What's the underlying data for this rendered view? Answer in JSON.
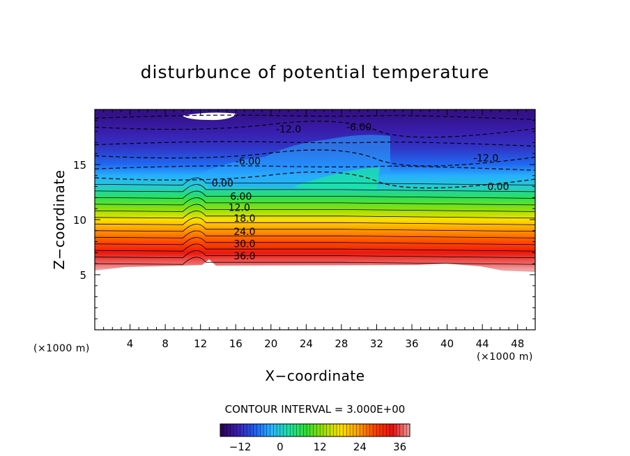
{
  "chart_data": {
    "type": "heatmap",
    "title": "disturbunce of potential temperature",
    "xlabel": "X−coordinate",
    "ylabel": "Z−coordinate",
    "x_unit_label": "(×1000 m)",
    "y_unit_label": "(×1000 m)",
    "xlim": [
      0,
      50
    ],
    "ylim": [
      0,
      20
    ],
    "x_ticks": [
      4,
      8,
      12,
      16,
      20,
      24,
      28,
      32,
      36,
      40,
      44,
      48
    ],
    "y_ticks": [
      5,
      10,
      15
    ],
    "contour_interval_text": "CONTOUR INTERVAL = 3.000E+00",
    "contour_interval": 3,
    "colorbar": {
      "min": -18,
      "max": 39,
      "ticks": [
        -12,
        0,
        12,
        24,
        36
      ]
    },
    "contour_labels": [
      {
        "text": "0.00",
        "x": 14.5,
        "z": 13.0
      },
      {
        "text": "6.00",
        "x": 16.6,
        "z": 11.8
      },
      {
        "text": "12.0",
        "x": 16.4,
        "z": 10.8
      },
      {
        "text": "18.0",
        "x": 17.0,
        "z": 9.8
      },
      {
        "text": "24.0",
        "x": 17.0,
        "z": 8.6
      },
      {
        "text": "30.0",
        "x": 17.0,
        "z": 7.5
      },
      {
        "text": "36.0",
        "x": 17.0,
        "z": 6.4
      },
      {
        "text": "-6.00",
        "x": 17.4,
        "z": 15.0
      },
      {
        "text": "-12.0",
        "x": 22.0,
        "z": 17.9
      },
      {
        "text": "-6.00",
        "x": 30.0,
        "z": 18.1
      },
      {
        "text": "-12.0",
        "x": 44.4,
        "z": 15.3
      },
      {
        "text": "0.00",
        "x": 45.8,
        "z": 12.7
      }
    ],
    "field_bands": [
      {
        "z": 19.5,
        "value": -15
      },
      {
        "z": 18.0,
        "value": -13
      },
      {
        "z": 16.5,
        "value": -11
      },
      {
        "z": 15.0,
        "value": -7
      },
      {
        "z": 14.0,
        "value": -3
      },
      {
        "z": 13.0,
        "value": 0
      },
      {
        "z": 12.0,
        "value": 6
      },
      {
        "z": 11.0,
        "value": 12
      },
      {
        "z": 10.0,
        "value": 18
      },
      {
        "z": 9.0,
        "value": 24
      },
      {
        "z": 8.0,
        "value": 28
      },
      {
        "z": 7.0,
        "value": 33
      },
      {
        "z": 6.0,
        "value": 37
      },
      {
        "z": 5.5,
        "value": 39
      }
    ],
    "colors": {
      "frame": "#000000",
      "background": "#ffffff",
      "colormap": [
        "#2a0050",
        "#3a1fb0",
        "#1f5ff0",
        "#28b8ff",
        "#20e0a0",
        "#30e030",
        "#a0e000",
        "#ffe000",
        "#ffa000",
        "#ff4000",
        "#e81010",
        "#f0a0a0"
      ]
    }
  }
}
